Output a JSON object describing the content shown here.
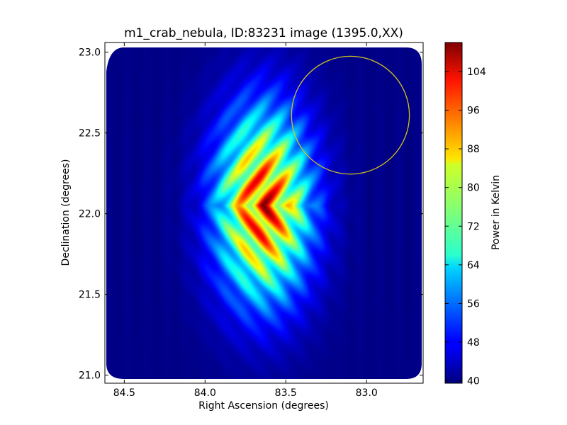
{
  "chart_data": {
    "type": "heatmap",
    "title": "m1_crab_nebula, ID:83231 image (1395.0,XX)",
    "xlabel": "Right Ascension (degrees)",
    "ylabel": "Declination (degrees)",
    "xlim": [
      84.62,
      82.65
    ],
    "ylim": [
      20.95,
      23.06
    ],
    "x_ticks": [
      "84.5",
      "84.0",
      "83.5",
      "83.0"
    ],
    "y_ticks": [
      "21.0",
      "21.5",
      "22.0",
      "22.5",
      "23.0"
    ],
    "x_tick_values": [
      84.5,
      84.0,
      83.5,
      83.0
    ],
    "y_tick_values": [
      21.0,
      21.5,
      22.0,
      22.5,
      23.0
    ],
    "colorbar": {
      "label": "Power in Kelvin",
      "range": [
        39.5,
        110
      ],
      "colormap": "jet",
      "ticks": [
        "40",
        "48",
        "56",
        "64",
        "72",
        "80",
        "88",
        "96",
        "104"
      ],
      "tick_values": [
        40,
        48,
        56,
        64,
        72,
        80,
        88,
        96,
        104
      ]
    },
    "source": {
      "center_ra": 83.64,
      "center_dec": 22.05,
      "peak_kelvin": 110,
      "background_kelvin": 40
    },
    "annotation": {
      "shape": "circle",
      "color": "#d4c21c",
      "center_ra": 83.1,
      "center_dec": 22.61,
      "radius_deg": 0.365
    },
    "grid": false,
    "legend": "none"
  }
}
